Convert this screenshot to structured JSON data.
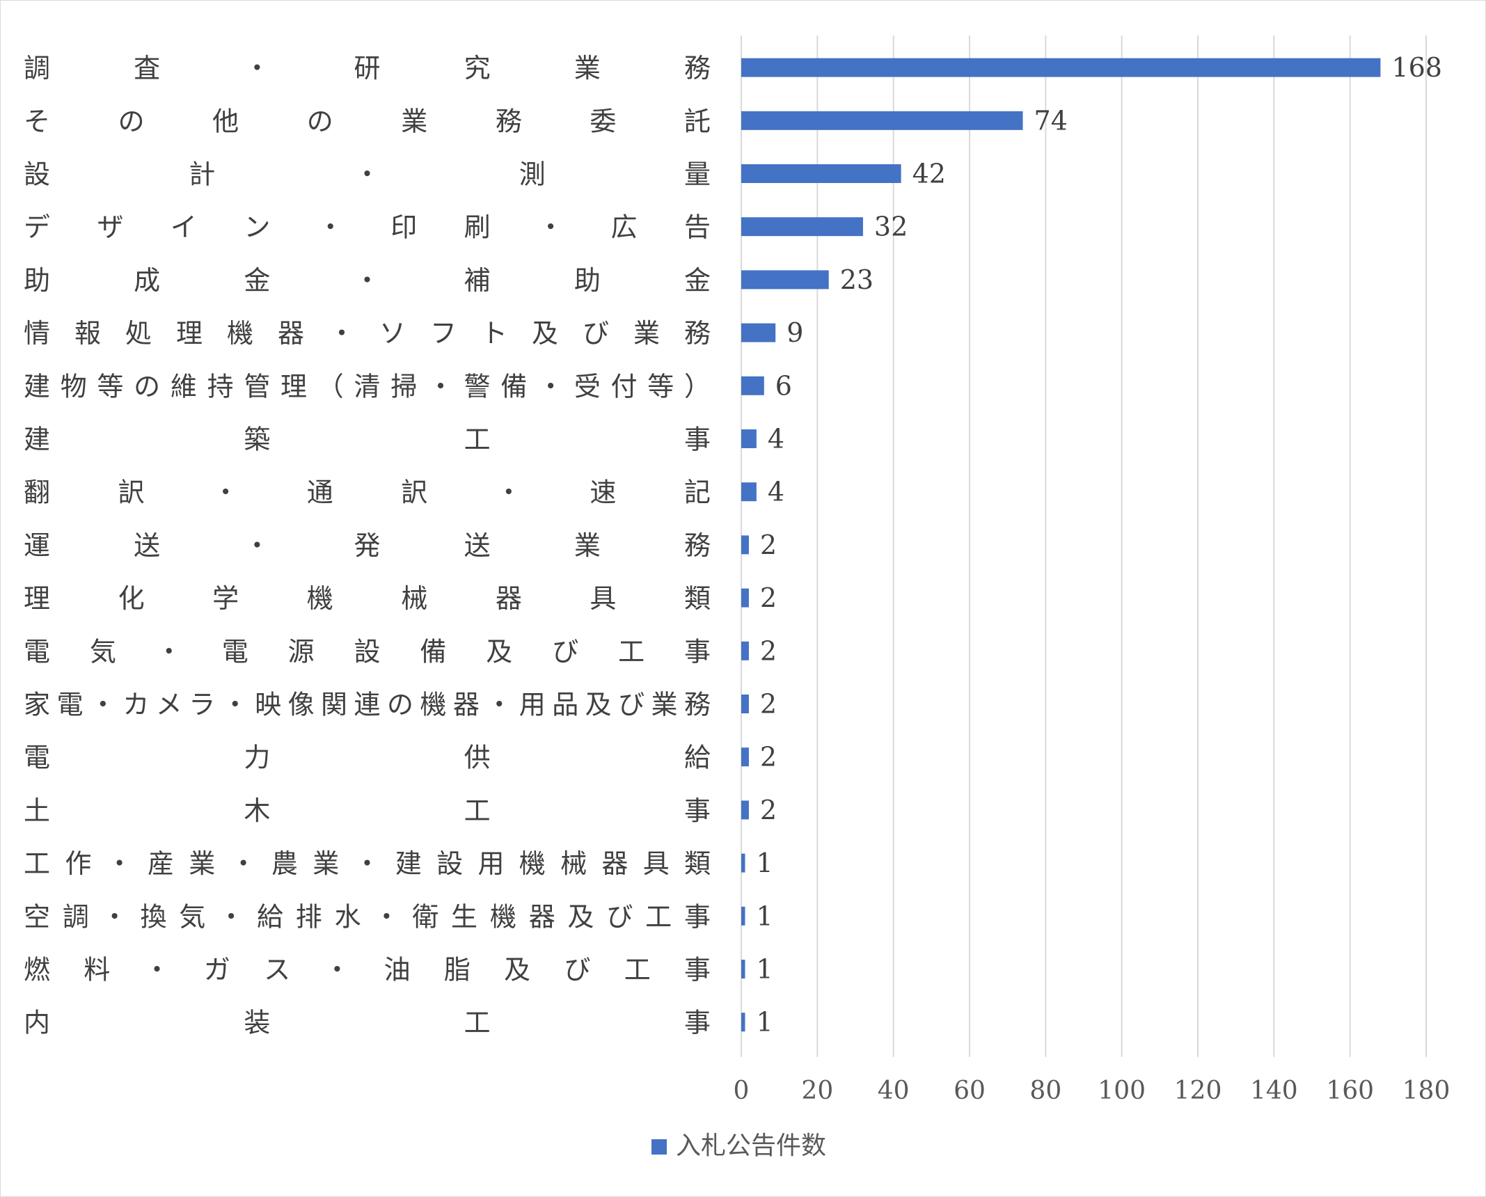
{
  "chart_data": {
    "type": "bar",
    "orientation": "horizontal",
    "title": "",
    "xlabel": "",
    "ylabel": "",
    "xlim": [
      0,
      180
    ],
    "x_ticks": [
      0,
      20,
      40,
      60,
      80,
      100,
      120,
      140,
      160,
      180
    ],
    "grid": "vertical",
    "legend_position": "bottom",
    "bar_color": "#4472C4",
    "categories": [
      "調査・研究業務",
      "その他の業務委託",
      "設計・測量",
      "デザイン・印刷・広告",
      "助成金・補助金",
      "情報処理機器・ソフト及び業務",
      "建物等の維持管理（清掃・警備・受付等）",
      "建築工事",
      "翻訳・通訳・速記",
      "運送・発送業務",
      "理化学機械器具類",
      "電気・電源設備及び工事",
      "家電・カメラ・映像関連の機器・用品及び業務",
      "電力供給",
      "土木工事",
      "工作・産業・農業・建設用機械器具類",
      "空調・換気・給排水・衛生機器及び工事",
      "燃料・ガス・油脂及び工事",
      "内装工事"
    ],
    "series": [
      {
        "name": "入札公告件数",
        "values": [
          168,
          74,
          42,
          32,
          23,
          9,
          6,
          4,
          4,
          2,
          2,
          2,
          2,
          2,
          2,
          1,
          1,
          1,
          1
        ]
      }
    ]
  }
}
